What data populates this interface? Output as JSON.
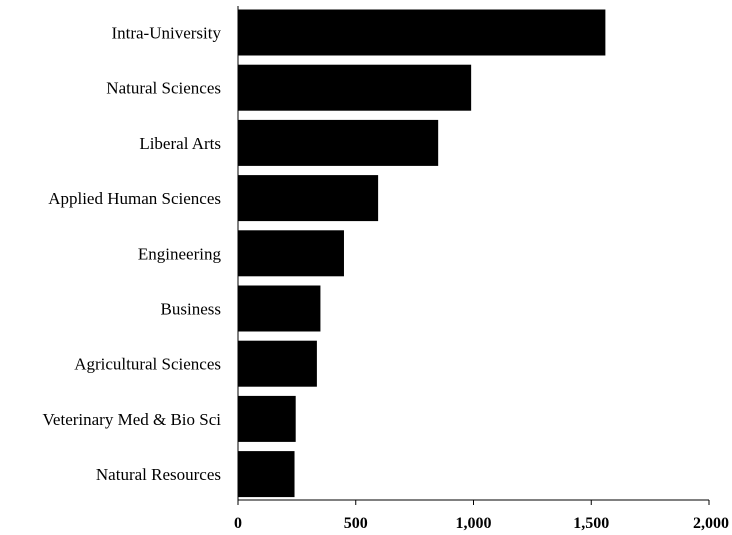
{
  "chart_data": {
    "type": "bar",
    "orientation": "horizontal",
    "categories": [
      "Intra-University",
      "Natural Sciences",
      "Liberal Arts",
      "Applied Human Sciences",
      "Engineering",
      "Business",
      "Agricultural Sciences",
      "Veterinary Med & Bio Sci",
      "Natural Resources"
    ],
    "values": [
      1560,
      990,
      850,
      595,
      450,
      350,
      335,
      245,
      240
    ],
    "xlim": [
      0,
      2000
    ],
    "xticks": [
      0,
      500,
      1000,
      1500,
      2000
    ],
    "xtick_labels": [
      "0",
      "500",
      "1,000",
      "1,500",
      "2,000"
    ],
    "bar_color": "#000000",
    "title": "",
    "xlabel": "",
    "ylabel": "",
    "grid": false,
    "legend": "none"
  }
}
